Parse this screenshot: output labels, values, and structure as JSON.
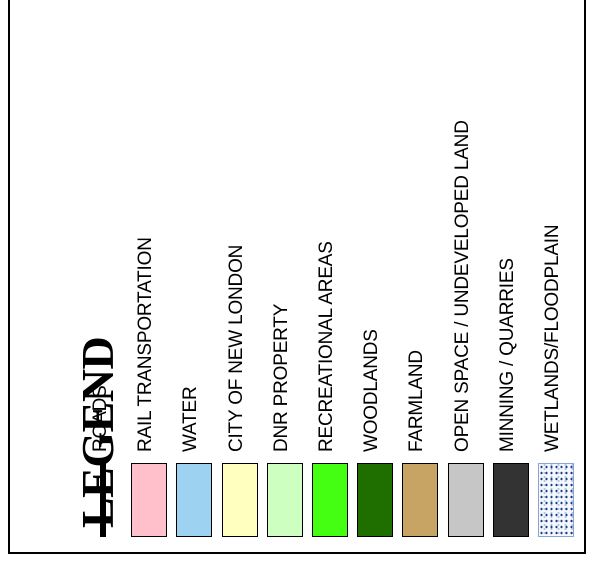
{
  "legend": {
    "title": "LEGEND",
    "items": [
      {
        "label": "ROADS",
        "color": "#000000",
        "style": "line",
        "icon": "road-line-icon"
      },
      {
        "label": "RAIL TRANSPORTATION",
        "color": "#ffc0cb",
        "style": "fill",
        "icon": "rail-swatch"
      },
      {
        "label": "WATER",
        "color": "#9dd3f0",
        "style": "fill",
        "icon": "water-swatch"
      },
      {
        "label": "CITY OF NEW LONDON",
        "color": "#ffffc0",
        "style": "fill",
        "icon": "city-swatch"
      },
      {
        "label": "DNR PROPERTY",
        "color": "#ccffc0",
        "style": "fill",
        "icon": "dnr-swatch"
      },
      {
        "label": "RECREATIONAL AREAS",
        "color": "#44ff11",
        "style": "fill",
        "icon": "recreational-swatch"
      },
      {
        "label": "WOODLANDS",
        "color": "#1f6e00",
        "style": "fill",
        "icon": "woodlands-swatch"
      },
      {
        "label": "FARMLAND",
        "color": "#c8a464",
        "style": "fill",
        "icon": "farmland-swatch"
      },
      {
        "label": "OPEN SPACE / UNDEVELOPED LAND",
        "color": "#c6c6c6",
        "style": "fill",
        "icon": "open-space-swatch"
      },
      {
        "label": "MINNING / QUARRIES",
        "color": "#333333",
        "style": "fill",
        "icon": "mining-swatch"
      },
      {
        "label": "WETLANDS/FLOODPLAIN",
        "color": "#1c3a8a",
        "style": "dotted",
        "icon": "wetlands-swatch"
      }
    ]
  }
}
